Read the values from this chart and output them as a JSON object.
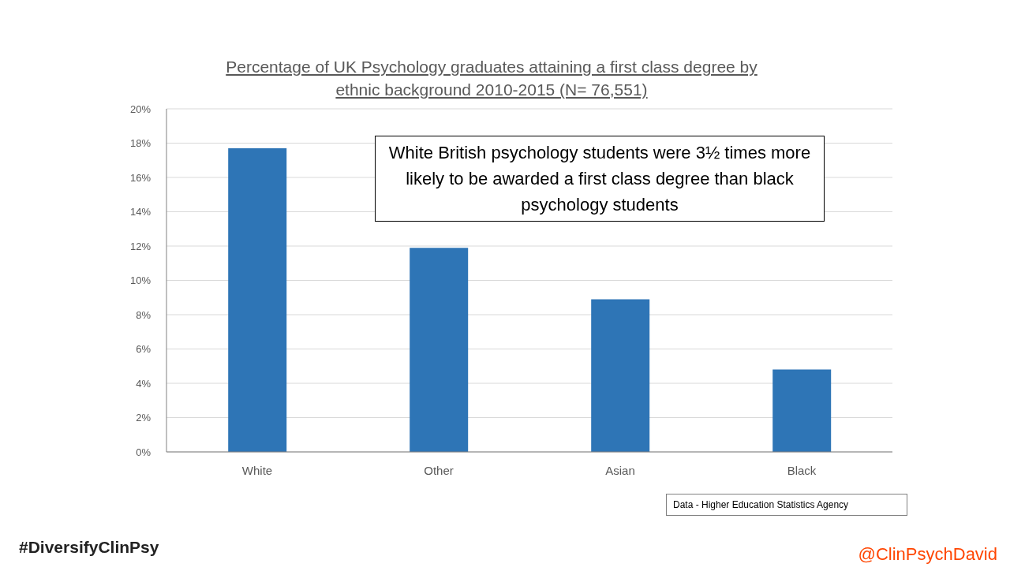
{
  "chart_data": {
    "type": "bar",
    "title": "Percentage of UK Psychology graduates attaining a first class degree by ethnic background 2010-2015 (N= 76,551)",
    "categories": [
      "White",
      "Other",
      "Asian",
      "Black"
    ],
    "values": [
      17.7,
      11.9,
      8.9,
      4.8
    ],
    "color": "#2e75b6",
    "ylim": [
      0,
      20
    ],
    "yticks": [
      {
        "value": 0,
        "label": "0%"
      },
      {
        "value": 2,
        "label": "2%"
      },
      {
        "value": 4,
        "label": "4%"
      },
      {
        "value": 6,
        "label": "6%"
      },
      {
        "value": 8,
        "label": "8%"
      },
      {
        "value": 10,
        "label": "10%"
      },
      {
        "value": 12,
        "label": "12%"
      },
      {
        "value": 14,
        "label": "14%"
      },
      {
        "value": 16,
        "label": "16%"
      },
      {
        "value": 18,
        "label": "18%"
      },
      {
        "value": 20,
        "label": "20%"
      }
    ],
    "grid": "y",
    "legend": false,
    "annotations": [
      "White British psychology students were 3½ times more likely to be awarded a first class degree than black psychology students",
      "Data - Higher Education Statistics Agency",
      "#DiversifyClinPsy",
      "@ClinPsychDavid"
    ]
  }
}
